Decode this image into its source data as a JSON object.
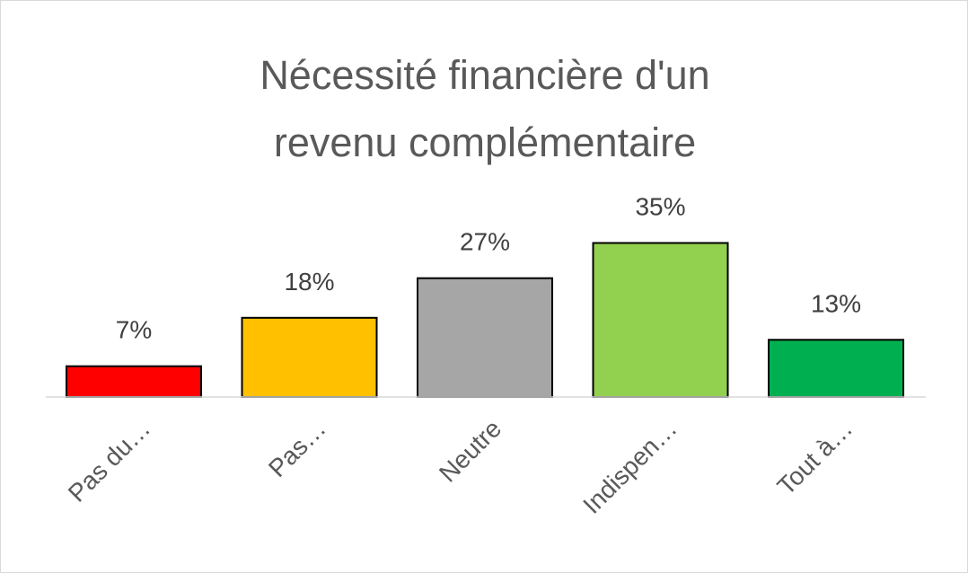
{
  "chart_data": {
    "type": "bar",
    "title_lines": [
      "Nécessité financière d'un",
      "revenu complémentaire"
    ],
    "categories": [
      "Pas du…",
      "Pas…",
      "Neutre",
      "Indispen…",
      "Tout à…"
    ],
    "values": [
      7,
      18,
      27,
      35,
      13
    ],
    "value_labels": [
      "7%",
      "18%",
      "27%",
      "35%",
      "13%"
    ],
    "colors": [
      "#ff0000",
      "#ffc000",
      "#a6a6a6",
      "#92d050",
      "#00b050"
    ],
    "unit": "%",
    "ylim": [
      0,
      35
    ],
    "grid": false,
    "legend": "none"
  }
}
